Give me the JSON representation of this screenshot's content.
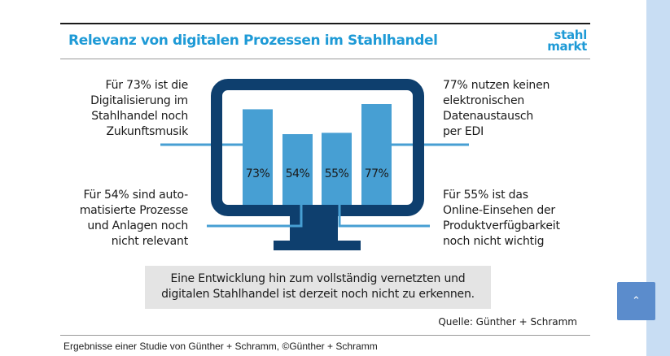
{
  "header": {
    "title": "Relevanz von digitalen Prozessen im Stahlhandel",
    "logo_line1": "stahl",
    "logo_line2": "markt"
  },
  "colors": {
    "title": "#1e9ad6",
    "monitor": "#0e3f6e",
    "bar": "#479fd3",
    "connector": "#479fd3",
    "summary_bg": "#e4e4e4",
    "side_strip": "#c8ddf3",
    "scroll_button": "#5b8ccc"
  },
  "notes": {
    "top_left": [
      "Für 73% ist die",
      "Digitalisierung im",
      "Stahlhandel noch",
      "Zukunftsmusik"
    ],
    "top_right": [
      "77% nutzen keinen",
      "elektronischen",
      "Datenaustausch",
      "per EDI"
    ],
    "bottom_left": [
      "Für 54% sind auto-",
      "matisierte Prozesse",
      "und Anlagen noch",
      "nicht relevant"
    ],
    "bottom_right": [
      "Für 55% ist das",
      "Online-Einsehen der",
      "Produktverfügbarkeit",
      "noch nicht wichtig"
    ]
  },
  "chart_data": {
    "type": "bar",
    "title": "Relevanz von digitalen Prozessen im Stahlhandel",
    "categories": [
      "Digitalisierung noch Zukunftsmusik",
      "Automatisierte Prozesse und Anlagen nicht relevant",
      "Online-Einsehen der Produktverfügbarkeit nicht wichtig",
      "Kein elektronischer Datenaustausch per EDI"
    ],
    "values": [
      73,
      54,
      55,
      77
    ],
    "labels": [
      "73%",
      "54%",
      "55%",
      "77%"
    ],
    "unit": "%",
    "ylim": [
      0,
      100
    ],
    "grid": false
  },
  "summary": {
    "line1": "Eine Entwicklung hin zum vollständig vernetzten und",
    "line2": "digitalen Stahlhandel ist derzeit noch nicht zu erkennen."
  },
  "source": "Quelle: Günther + Schramm",
  "caption": "Ergebnisse einer Studie von Günther + Schramm, ©Günther + Schramm",
  "scroll_top": {
    "icon": "chevron-up-icon",
    "glyph": "⌃"
  }
}
